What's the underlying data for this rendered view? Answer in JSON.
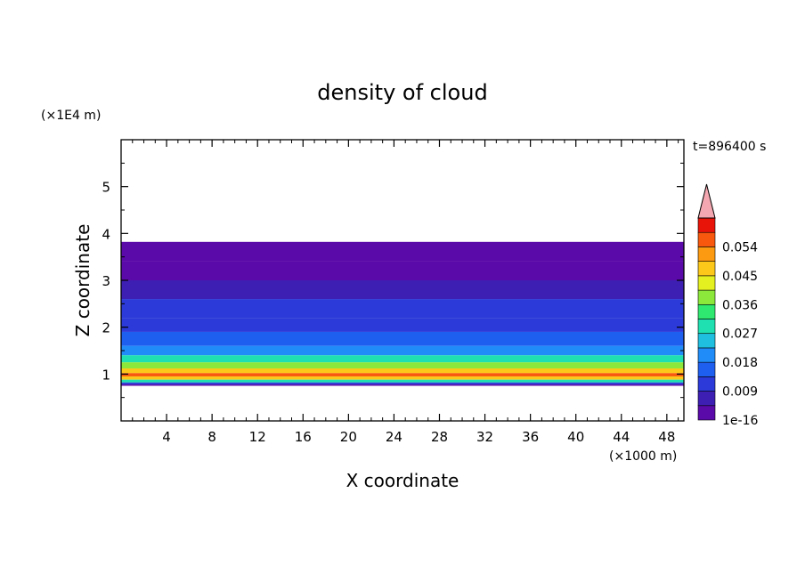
{
  "chart_data": {
    "type": "heatmap",
    "title": "density of cloud",
    "xlabel": "X coordinate",
    "ylabel": "Z coordinate",
    "x_unit": "(×1000 m)",
    "y_unit": "(×1E4 m)",
    "time_label": "t=896400 s",
    "xlim": [
      0,
      49.5
    ],
    "ylim": [
      0,
      6
    ],
    "x_ticks": [
      4,
      8,
      12,
      16,
      20,
      24,
      28,
      32,
      36,
      40,
      44,
      48
    ],
    "y_ticks": [
      1,
      2,
      3,
      4,
      5
    ],
    "colorbar": {
      "labels": [
        "1e-16",
        "0.009",
        "0.018",
        "0.027",
        "0.036",
        "0.045",
        "0.054"
      ],
      "levels": [
        0.0,
        0.0045,
        0.009,
        0.0135,
        0.018,
        0.0225,
        0.027,
        0.0315,
        0.036,
        0.0405,
        0.045,
        0.0495,
        0.054,
        0.0585
      ],
      "colors": [
        "#5a0aa8",
        "#3e1fb4",
        "#2b3ad8",
        "#1f5ff0",
        "#1f8cf7",
        "#1fbfe0",
        "#1ee0b0",
        "#2ee870",
        "#8ce83a",
        "#e4f020",
        "#fcc91a",
        "#fc9a12",
        "#f8580e",
        "#e8140a"
      ],
      "extend_color": "#f4a7b0"
    },
    "profile": [
      {
        "z": 3.82,
        "value": 0.002
      },
      {
        "z": 3.4,
        "value": 0.004
      },
      {
        "z": 3.0,
        "value": 0.006
      },
      {
        "z": 2.6,
        "value": 0.009
      },
      {
        "z": 2.2,
        "value": 0.013
      },
      {
        "z": 1.9,
        "value": 0.017
      },
      {
        "z": 1.6,
        "value": 0.022
      },
      {
        "z": 1.4,
        "value": 0.028
      },
      {
        "z": 1.25,
        "value": 0.036
      },
      {
        "z": 1.12,
        "value": 0.045
      },
      {
        "z": 1.02,
        "value": 0.054
      },
      {
        "z": 0.95,
        "value": 0.046
      },
      {
        "z": 0.88,
        "value": 0.03
      },
      {
        "z": 0.82,
        "value": 0.012
      },
      {
        "z": 0.78,
        "value": 0.001
      }
    ],
    "cloud_top_z": 3.85,
    "cloud_base_z": 0.75,
    "grid": false,
    "legend": "right"
  }
}
